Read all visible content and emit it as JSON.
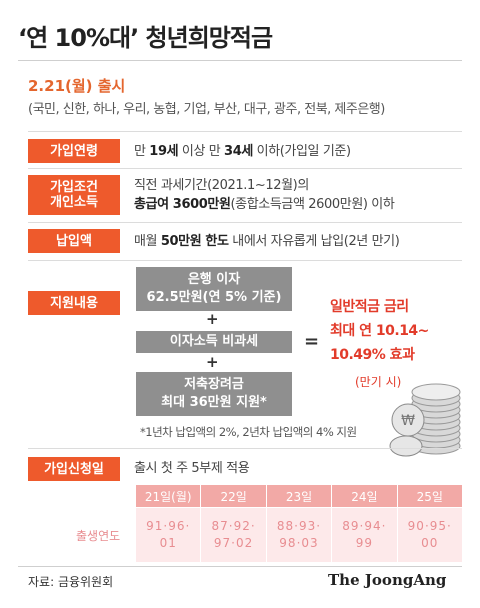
{
  "title": "‘연 10%대’ 청년희망적금",
  "launch": "2.21(월) 출시",
  "banks": "(국민, 신한, 하나, 우리, 농협, 기업, 부산, 대구, 광주, 전북, 제주은행)",
  "rows": {
    "age": {
      "label": "가입연령",
      "pre": "만 ",
      "b1": "19세",
      "mid": " 이상 만 ",
      "b2": "34세",
      "post": " 이하(가입일 기준)"
    },
    "income": {
      "label1": "가입조건",
      "label2": "개인소득",
      "line1": "직전 과세기간(2021.1~12월)의",
      "b": "총급여 3600만원",
      "line2": "(종합소득금액 2600만원) 이하"
    },
    "payment": {
      "label": "납입액",
      "pre": "매월 ",
      "b": "50만원 한도",
      "post": " 내에서 자유롭게 납입(2년 만기)"
    },
    "support": {
      "label": "지원내용",
      "box1_line1": "은행 이자",
      "box1_line2": "62.5만원(연 5% 기준)",
      "plus": "+",
      "box2": "이자소득 비과세",
      "box3_line1": "저축장려금",
      "box3_line2": "최대 36만원 지원*",
      "equals": "=",
      "result1": "일반적금 금리",
      "result2": "최대 연 10.14~",
      "result3": "10.49% 효과",
      "result4": "(만기 시)",
      "note": "*1년차 납입액의 2%, 2년차 납입액의 4% 지원"
    },
    "apply": {
      "label": "가입신청일",
      "text": "출시 첫 주 5부제 적용"
    }
  },
  "schedule": {
    "row_label": "출생연도",
    "days": [
      "21일(월)",
      "22일",
      "23일",
      "24일",
      "25일"
    ],
    "years_line1": [
      "91·96·",
      "87·92·",
      "88·93·",
      "89·94·",
      "90·95·"
    ],
    "years_line2": [
      "01",
      "97·02",
      "98·03",
      "99",
      "00"
    ]
  },
  "source": "자료: 금융위원회",
  "brand": "The JoongAng",
  "colors": {
    "accent": "#ee5a2c",
    "result": "#e23b2a",
    "box": "#8f8f8f",
    "schedule_head": "#f2a9a6",
    "schedule_body": "#fde9ea"
  }
}
